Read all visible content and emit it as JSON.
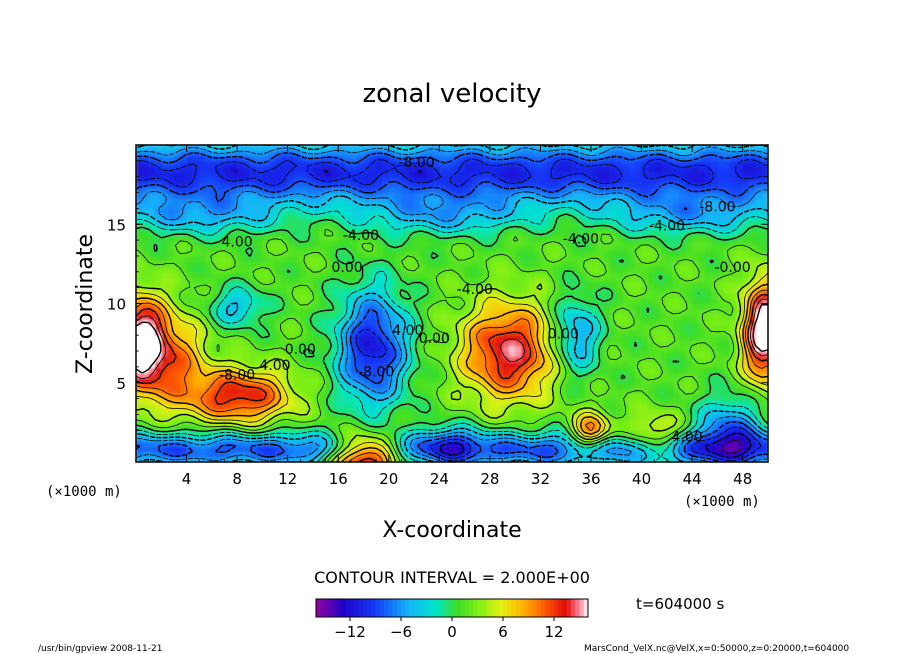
{
  "chart_data": {
    "type": "heatmap",
    "title": "zonal velocity",
    "xlabel": "X-coordinate",
    "ylabel": "Z-coordinate",
    "x_unit": "(×1000 m)",
    "y_unit": "(×1000 m)",
    "xlim": [
      0,
      50
    ],
    "ylim": [
      0,
      20
    ],
    "x_ticks": [
      4,
      8,
      12,
      16,
      20,
      24,
      28,
      32,
      36,
      40,
      44,
      48
    ],
    "y_ticks": [
      5,
      10,
      15
    ],
    "contour_interval_label": "CONTOUR INTERVAL = 2.000E+00",
    "time_label": "t=604000 s",
    "colorbar": {
      "range": [
        -16,
        16
      ],
      "ticks": [
        -12,
        -6,
        0,
        6,
        12
      ]
    },
    "contour_labels": [
      {
        "text": "-8.00",
        "x": 22.2,
        "z": 18.6
      },
      {
        "text": "-8.00",
        "x": 46.0,
        "z": 15.8
      },
      {
        "text": "-4.00",
        "x": 42.0,
        "z": 14.6
      },
      {
        "text": "-4.00",
        "x": 35.2,
        "z": 13.8
      },
      {
        "text": "-4.00",
        "x": 17.8,
        "z": 14.0
      },
      {
        "text": "4.00",
        "x": 8.0,
        "z": 13.6
      },
      {
        "text": "0.00",
        "x": 16.7,
        "z": 12.0
      },
      {
        "text": "-0.00",
        "x": 47.2,
        "z": 12.0
      },
      {
        "text": "-4.00",
        "x": 26.8,
        "z": 10.6
      },
      {
        "text": "0.00",
        "x": 33.8,
        "z": 7.8
      },
      {
        "text": "4.00",
        "x": 21.5,
        "z": 8.0
      },
      {
        "text": "0.00",
        "x": 23.6,
        "z": 7.5
      },
      {
        "text": "0.00",
        "x": 13.0,
        "z": 6.8
      },
      {
        "text": "-8.00",
        "x": 19.0,
        "z": 5.4
      },
      {
        "text": "-8.00",
        "x": 8.0,
        "z": 5.2
      },
      {
        "text": "4.00",
        "x": 11.0,
        "z": 5.8
      },
      {
        "text": "4.00",
        "x": 43.6,
        "z": 1.3
      }
    ],
    "field_features": [
      {
        "kind": "jet",
        "z": 16.5,
        "value": -10
      },
      {
        "kind": "jet",
        "z": 1.0,
        "value": -8
      },
      {
        "kind": "cell",
        "x": 29.5,
        "z": 7.0,
        "value": 12
      },
      {
        "kind": "cell",
        "x": 8.0,
        "z": 4.0,
        "value": 12
      },
      {
        "kind": "cell",
        "x": 18.5,
        "z": 7.0,
        "value": -10
      },
      {
        "kind": "cell",
        "x": 0.5,
        "z": 7.0,
        "value": 16
      },
      {
        "kind": "cell",
        "x": 49.5,
        "z": 8.0,
        "value": 16
      },
      {
        "kind": "cell",
        "x": 18.0,
        "z": 0.8,
        "value": 16
      },
      {
        "kind": "cell",
        "x": 36.0,
        "z": 1.8,
        "value": 13
      }
    ]
  },
  "footer": {
    "left": "/usr/bin/gpview   2008-11-21",
    "right": "MarsCond_VelX.nc@VelX,x=0:50000,z=0:20000,t=604000"
  }
}
